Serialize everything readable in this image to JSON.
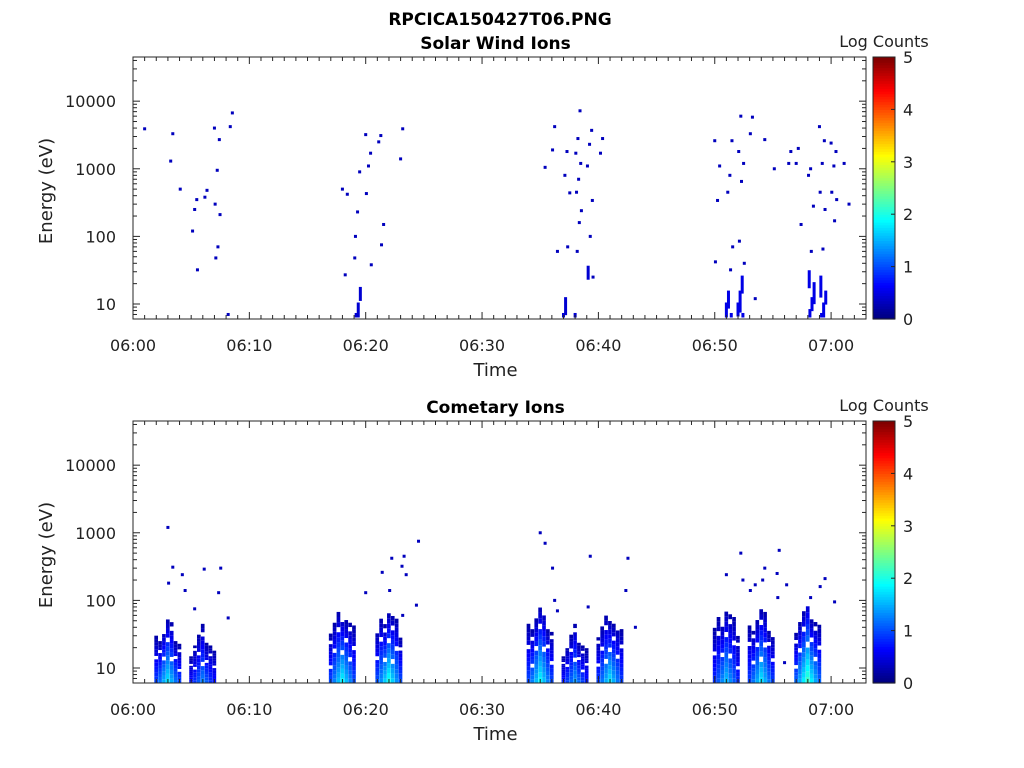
{
  "figure_title": "RPCICA150427T06.PNG",
  "chart_data": [
    {
      "type": "heatmap",
      "title": "Solar Wind Ions",
      "xlabel": "Time",
      "ylabel": "Energy (eV)",
      "x_scale": "time",
      "y_scale": "log",
      "xlim": [
        "06:00",
        "07:03"
      ],
      "ylim": [
        6,
        45000
      ],
      "x_ticks": [
        "06:00",
        "06:10",
        "06:20",
        "06:30",
        "06:40",
        "06:50",
        "07:00"
      ],
      "y_ticks": [
        {
          "value": 10,
          "label": "10"
        },
        {
          "value": 100,
          "label": "100"
        },
        {
          "value": 1000,
          "label": "1000"
        },
        {
          "value": 10000,
          "label": "10000"
        }
      ],
      "colorbar": {
        "label": "Log Counts",
        "min": 0,
        "max": 5,
        "ticks": [
          "0",
          "1",
          "2",
          "3",
          "4",
          "5"
        ],
        "colormap": "jet"
      },
      "points": [
        [
          "06:01",
          3900,
          0.3
        ],
        [
          "06:03",
          3300,
          0.3
        ],
        [
          "06:03",
          1300,
          0.3
        ],
        [
          "06:04",
          500,
          0.3
        ],
        [
          "06:05",
          350,
          0.3
        ],
        [
          "06:05",
          250,
          0.3
        ],
        [
          "06:05",
          120,
          0.3
        ],
        [
          "06:05",
          32,
          0.3
        ],
        [
          "06:06",
          480,
          0.3
        ],
        [
          "06:06",
          380,
          0.3
        ],
        [
          "06:07",
          4000,
          0.3
        ],
        [
          "06:07",
          2700,
          0.3
        ],
        [
          "06:07",
          950,
          0.3
        ],
        [
          "06:07",
          300,
          0.3
        ],
        [
          "06:07",
          210,
          0.3
        ],
        [
          "06:07",
          70,
          0.3
        ],
        [
          "06:07",
          48,
          0.3
        ],
        [
          "06:08",
          6700,
          0.3
        ],
        [
          "06:08",
          4200,
          0.3
        ],
        [
          "06:08",
          7,
          0.3
        ],
        [
          "06:18",
          500,
          0.3
        ],
        [
          "06:18",
          420,
          0.3
        ],
        [
          "06:18",
          27,
          0.3
        ],
        [
          "06:19",
          48,
          0.3
        ],
        [
          "06:19",
          900,
          0.3
        ],
        [
          "06:19",
          230,
          0.3
        ],
        [
          "06:19",
          100,
          0.3
        ],
        [
          "06:19",
          17,
          0.4
        ],
        [
          "06:19",
          10,
          0.4
        ],
        [
          "06:19",
          7,
          0.4
        ],
        [
          "06:20",
          3200,
          0.3
        ],
        [
          "06:20",
          1700,
          0.3
        ],
        [
          "06:20",
          1100,
          0.3
        ],
        [
          "06:20",
          430,
          0.3
        ],
        [
          "06:20",
          38,
          0.3
        ],
        [
          "06:21",
          3100,
          0.3
        ],
        [
          "06:21",
          2500,
          0.3
        ],
        [
          "06:21",
          150,
          0.3
        ],
        [
          "06:21",
          75,
          0.3
        ],
        [
          "06:23",
          3900,
          0.3
        ],
        [
          "06:23",
          1400,
          0.3
        ],
        [
          "06:35",
          1050,
          0.3
        ],
        [
          "06:36",
          4200,
          0.3
        ],
        [
          "06:36",
          1900,
          0.3
        ],
        [
          "06:36",
          60,
          0.3
        ],
        [
          "06:37",
          1800,
          0.3
        ],
        [
          "06:37",
          800,
          0.3
        ],
        [
          "06:37",
          440,
          0.3
        ],
        [
          "06:37",
          70,
          0.3
        ],
        [
          "06:37",
          12,
          0.4
        ],
        [
          "06:37",
          7,
          0.4
        ],
        [
          "06:38",
          7200,
          0.3
        ],
        [
          "06:38",
          2800,
          0.3
        ],
        [
          "06:38",
          1700,
          0.3
        ],
        [
          "06:38",
          1200,
          0.3
        ],
        [
          "06:38",
          700,
          0.3
        ],
        [
          "06:38",
          450,
          0.3
        ],
        [
          "06:38",
          240,
          0.3
        ],
        [
          "06:38",
          160,
          0.3
        ],
        [
          "06:38",
          60,
          0.3
        ],
        [
          "06:38",
          7,
          0.4
        ],
        [
          "06:39",
          3700,
          0.3
        ],
        [
          "06:39",
          2300,
          0.3
        ],
        [
          "06:39",
          1100,
          0.3
        ],
        [
          "06:39",
          340,
          0.3
        ],
        [
          "06:39",
          100,
          0.3
        ],
        [
          "06:39",
          35,
          0.4
        ],
        [
          "06:39",
          25,
          0.3
        ],
        [
          "06:40",
          2800,
          0.3
        ],
        [
          "06:40",
          1700,
          0.3
        ],
        [
          "06:50",
          2600,
          0.3
        ],
        [
          "06:50",
          1100,
          0.3
        ],
        [
          "06:50",
          340,
          0.3
        ],
        [
          "06:50",
          42,
          0.3
        ],
        [
          "06:51",
          2600,
          0.3
        ],
        [
          "06:51",
          800,
          0.3
        ],
        [
          "06:51",
          450,
          0.3
        ],
        [
          "06:51",
          70,
          0.3
        ],
        [
          "06:51",
          32,
          0.3
        ],
        [
          "06:51",
          15,
          0.5
        ],
        [
          "06:51",
          10,
          0.5
        ],
        [
          "06:51",
          7,
          0.5
        ],
        [
          "06:52",
          6000,
          0.3
        ],
        [
          "06:52",
          1800,
          0.3
        ],
        [
          "06:52",
          1200,
          0.3
        ],
        [
          "06:52",
          650,
          0.3
        ],
        [
          "06:52",
          85,
          0.3
        ],
        [
          "06:52",
          40,
          0.3
        ],
        [
          "06:52",
          25,
          0.5
        ],
        [
          "06:52",
          15,
          0.5
        ],
        [
          "06:52",
          10,
          0.5
        ],
        [
          "06:52",
          7,
          0.5
        ],
        [
          "06:53",
          5800,
          0.3
        ],
        [
          "06:53",
          3300,
          0.3
        ],
        [
          "06:53",
          12,
          0.3
        ],
        [
          "06:54",
          2700,
          0.3
        ],
        [
          "06:55",
          1000,
          0.3
        ],
        [
          "06:56",
          1800,
          0.3
        ],
        [
          "06:56",
          1200,
          0.3
        ],
        [
          "06:57",
          2000,
          0.3
        ],
        [
          "06:57",
          1200,
          0.3
        ],
        [
          "06:57",
          150,
          0.3
        ],
        [
          "06:58",
          1000,
          0.3
        ],
        [
          "06:58",
          800,
          0.3
        ],
        [
          "06:58",
          280,
          0.3
        ],
        [
          "06:58",
          60,
          0.3
        ],
        [
          "06:58",
          30,
          0.5
        ],
        [
          "06:58",
          20,
          0.5
        ],
        [
          "06:58",
          12,
          0.5
        ],
        [
          "06:58",
          8,
          0.5
        ],
        [
          "06:59",
          4200,
          0.3
        ],
        [
          "06:59",
          2600,
          0.3
        ],
        [
          "06:59",
          1200,
          0.3
        ],
        [
          "06:59",
          450,
          0.3
        ],
        [
          "06:59",
          250,
          0.3
        ],
        [
          "06:59",
          65,
          0.3
        ],
        [
          "06:59",
          25,
          0.5
        ],
        [
          "06:59",
          15,
          0.5
        ],
        [
          "06:59",
          10,
          0.5
        ],
        [
          "06:59",
          7,
          0.5
        ],
        [
          "07:00",
          2400,
          0.3
        ],
        [
          "07:00",
          1800,
          0.3
        ],
        [
          "07:00",
          1100,
          0.3
        ],
        [
          "07:00",
          450,
          0.3
        ],
        [
          "07:00",
          350,
          0.3
        ],
        [
          "07:00",
          170,
          0.3
        ],
        [
          "07:01",
          1200,
          0.3
        ],
        [
          "07:01",
          300,
          0.3
        ]
      ]
    },
    {
      "type": "heatmap",
      "title": "Cometary Ions",
      "xlabel": "Time",
      "ylabel": "Energy (eV)",
      "x_scale": "time",
      "y_scale": "log",
      "xlim": [
        "06:00",
        "07:03"
      ],
      "ylim": [
        6,
        45000
      ],
      "x_ticks": [
        "06:00",
        "06:10",
        "06:20",
        "06:30",
        "06:40",
        "06:50",
        "07:00"
      ],
      "y_ticks": [
        {
          "value": 10,
          "label": "10"
        },
        {
          "value": 100,
          "label": "100"
        },
        {
          "value": 1000,
          "label": "1000"
        },
        {
          "value": 10000,
          "label": "10000"
        }
      ],
      "colorbar": {
        "label": "Log Counts",
        "min": 0,
        "max": 5,
        "ticks": [
          "0",
          "1",
          "2",
          "3",
          "4",
          "5"
        ],
        "colormap": "jet"
      },
      "bursts": [
        {
          "t0": "06:02",
          "t1": "06:04",
          "top": 60,
          "core": 1.6
        },
        {
          "t0": "06:05",
          "t1": "06:07",
          "top": 45,
          "core": 1.1
        },
        {
          "t0": "06:17",
          "t1": "06:19",
          "top": 85,
          "core": 1.7
        },
        {
          "t0": "06:21",
          "t1": "06:23",
          "top": 85,
          "core": 1.8
        },
        {
          "t0": "06:34",
          "t1": "06:36",
          "top": 90,
          "core": 1.7
        },
        {
          "t0": "06:37",
          "t1": "06:39",
          "top": 45,
          "core": 1.2
        },
        {
          "t0": "06:40",
          "t1": "06:42",
          "top": 75,
          "core": 1.6
        },
        {
          "t0": "06:50",
          "t1": "06:52",
          "top": 90,
          "core": 1.4
        },
        {
          "t0": "06:53",
          "t1": "06:55",
          "top": 85,
          "core": 1.6
        },
        {
          "t0": "06:57",
          "t1": "06:59",
          "top": 100,
          "core": 2.0
        }
      ],
      "points": [
        [
          "06:03",
          1200,
          0.3
        ],
        [
          "06:03",
          310,
          0.3
        ],
        [
          "06:04",
          240,
          0.3
        ],
        [
          "06:03",
          180,
          0.3
        ],
        [
          "06:04",
          140,
          0.3
        ],
        [
          "06:05",
          75,
          0.3
        ],
        [
          "06:06",
          290,
          0.3
        ],
        [
          "06:07",
          300,
          0.3
        ],
        [
          "06:07",
          130,
          0.3
        ],
        [
          "06:08",
          55,
          0.3
        ],
        [
          "06:20",
          130,
          0.3
        ],
        [
          "06:21",
          260,
          0.3
        ],
        [
          "06:22",
          420,
          0.3
        ],
        [
          "06:22",
          140,
          0.3
        ],
        [
          "06:23",
          240,
          0.3
        ],
        [
          "06:23",
          450,
          0.3
        ],
        [
          "06:23",
          320,
          0.3
        ],
        [
          "06:24",
          750,
          0.3
        ],
        [
          "06:24",
          85,
          0.3
        ],
        [
          "06:23",
          60,
          0.3
        ],
        [
          "06:35",
          1000,
          0.3
        ],
        [
          "06:35",
          700,
          0.3
        ],
        [
          "06:36",
          100,
          0.3
        ],
        [
          "06:36",
          300,
          0.3
        ],
        [
          "06:36",
          70,
          0.3
        ],
        [
          "06:39",
          450,
          0.3
        ],
        [
          "06:39",
          80,
          0.3
        ],
        [
          "06:42",
          420,
          0.3
        ],
        [
          "06:42",
          140,
          0.3
        ],
        [
          "06:43",
          40,
          0.3
        ],
        [
          "06:51",
          240,
          0.3
        ],
        [
          "06:52",
          200,
          0.3
        ],
        [
          "06:52",
          500,
          0.3
        ],
        [
          "06:53",
          140,
          0.3
        ],
        [
          "06:53",
          170,
          0.3
        ],
        [
          "06:54",
          300,
          0.3
        ],
        [
          "06:54",
          200,
          0.3
        ],
        [
          "06:55",
          550,
          0.3
        ],
        [
          "06:55",
          250,
          0.3
        ],
        [
          "06:56",
          170,
          0.3
        ],
        [
          "06:56",
          12,
          0.3
        ],
        [
          "06:55",
          110,
          0.3
        ],
        [
          "06:58",
          110,
          0.3
        ],
        [
          "06:59",
          160,
          0.3
        ],
        [
          "06:59",
          210,
          0.3
        ],
        [
          "07:00",
          95,
          0.3
        ]
      ]
    }
  ]
}
